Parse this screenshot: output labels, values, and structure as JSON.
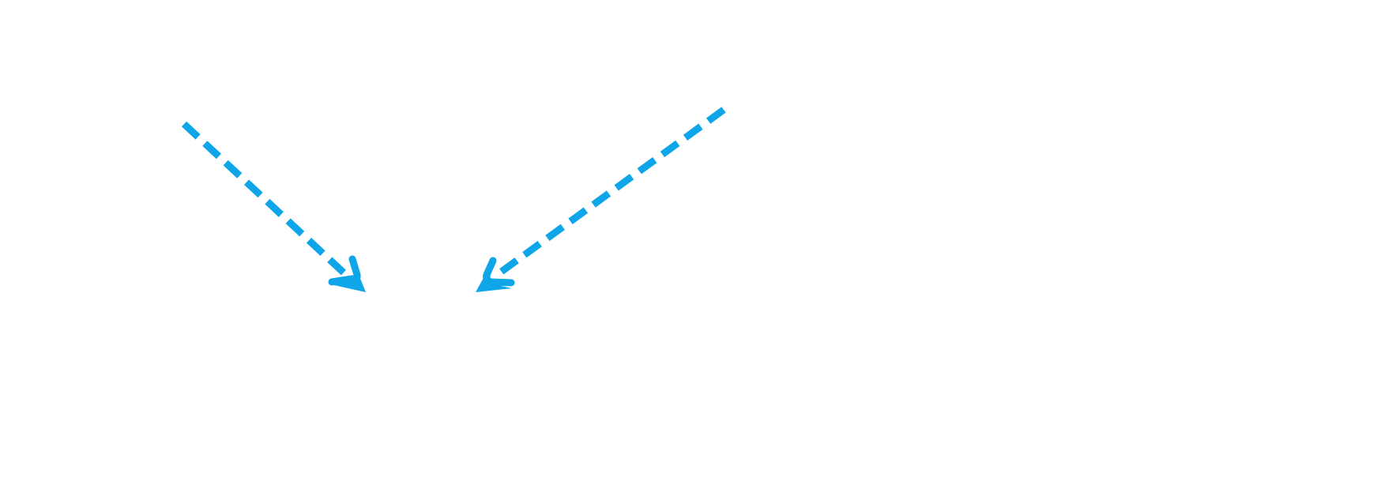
{
  "diagram": {
    "background_color": "#ffffff",
    "arrow_color": "#0ea5e9",
    "arrows": [
      {
        "id": "left-arrow",
        "style": "dashed",
        "direction": "down-right"
      },
      {
        "id": "right-arrow",
        "style": "dashed",
        "direction": "down-left"
      }
    ]
  }
}
